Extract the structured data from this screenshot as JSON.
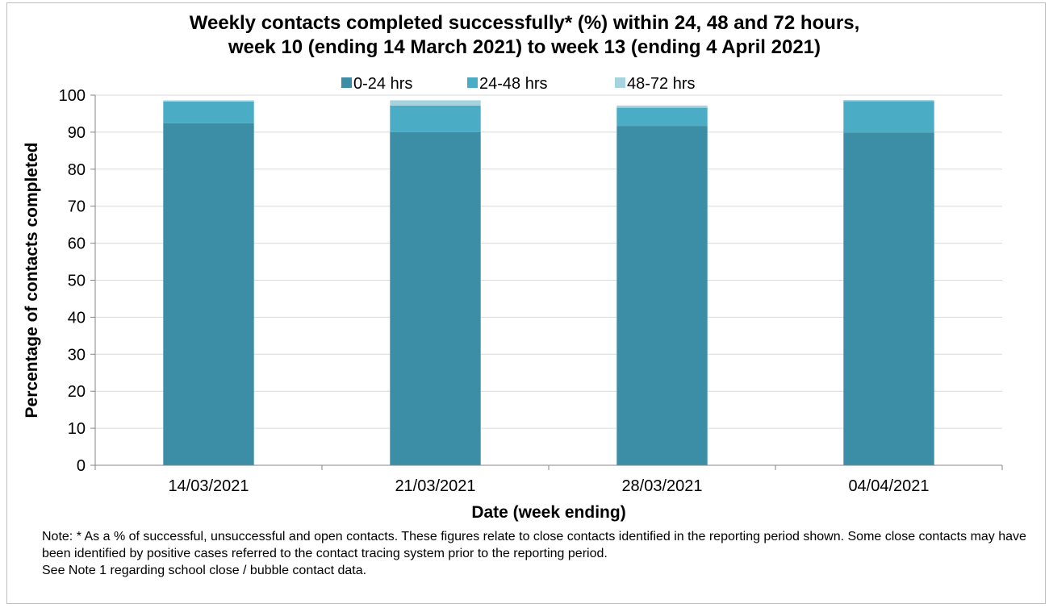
{
  "chart_data": {
    "type": "bar",
    "stacked": true,
    "title_line1": "Weekly contacts completed successfully* (%) within 24, 48 and 72 hours,",
    "title_line2": "week 10 (ending 14 March 2021) to week 13 (ending 4 April 2021)",
    "xlabel": "Date (week ending)",
    "ylabel": "Percentage of contacts completed",
    "ylim": [
      0,
      100
    ],
    "yticks": [
      "0",
      "10",
      "20",
      "30",
      "40",
      "50",
      "60",
      "70",
      "80",
      "90",
      "100"
    ],
    "categories": [
      "14/03/2021",
      "21/03/2021",
      "28/03/2021",
      "04/04/2021"
    ],
    "series": [
      {
        "name": "0-24 hrs",
        "color": "#3b8ea5",
        "values": [
          92.4,
          90.0,
          91.7,
          89.9
        ]
      },
      {
        "name": "24-48 hrs",
        "color": "#4bacc6",
        "values": [
          5.9,
          7.2,
          4.9,
          8.5
        ]
      },
      {
        "name": "48-72 hrs",
        "color": "#a6d3e0",
        "values": [
          0.3,
          1.4,
          0.6,
          0.3
        ]
      }
    ],
    "grid": true,
    "legend_position": "top"
  },
  "notes": {
    "line1": "Note: * As a % of successful, unsuccessful and open contacts. These figures relate to close contacts identified in the reporting period shown. Some close contacts may have been identified by positive cases referred to the contact tracing system prior to the reporting period.",
    "line2": "See Note 1 regarding school close / bubble contact data."
  }
}
